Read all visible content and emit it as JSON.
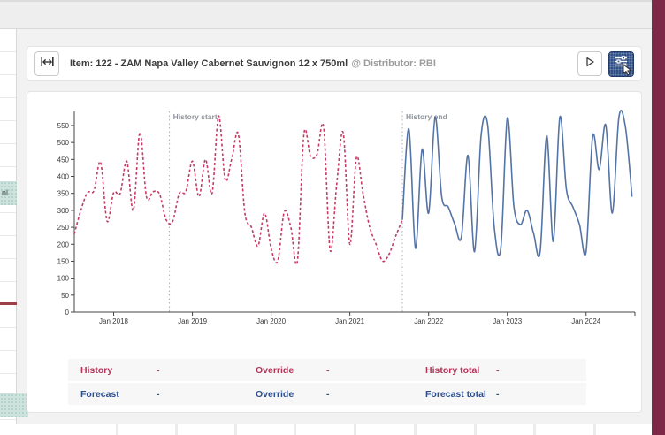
{
  "header": {
    "title": "Item: 122 - ZAM Napa Valley Cabernet Sauvignon 12 x 750ml",
    "suffix": "@ Distributor: RBI",
    "icons": {
      "left": "expand-horizontal-icon",
      "run": "play-icon",
      "settings": "sliders-icon"
    }
  },
  "background": {
    "left_row_label": "nl"
  },
  "chart_data": {
    "type": "line",
    "title": "",
    "xlabel": "",
    "ylabel": "",
    "grid": false,
    "legend": "none",
    "ylim": [
      0,
      585
    ],
    "y_ticks": [
      0,
      50,
      100,
      150,
      200,
      250,
      300,
      350,
      400,
      450,
      500,
      550
    ],
    "x_tick_labels": [
      "Jan 2018",
      "Jan 2019",
      "Jan 2020",
      "Jan 2021",
      "Jan 2022",
      "Jan 2023",
      "Jan 2024"
    ],
    "x_tick_month_index": [
      6,
      18,
      30,
      42,
      54,
      66,
      78
    ],
    "markers": [
      {
        "label": "History start",
        "month_index": 14.5
      },
      {
        "label": "History end",
        "month_index": 50
      }
    ],
    "series": [
      {
        "name": "History",
        "color": "#c43a62",
        "style": "dashed",
        "start_month_index": 0,
        "values": [
          230,
          300,
          352,
          358,
          442,
          268,
          352,
          350,
          445,
          300,
          530,
          340,
          355,
          348,
          272,
          268,
          350,
          355,
          445,
          340,
          450,
          350,
          578,
          390,
          452,
          525,
          292,
          250,
          195,
          292,
          188,
          150,
          295,
          250,
          150,
          525,
          460,
          465,
          545,
          182,
          378,
          528,
          200,
          455,
          350,
          252,
          200,
          150,
          172,
          225,
          272
        ]
      },
      {
        "name": "Forecast",
        "color": "#5474a6",
        "style": "solid",
        "start_month_index": 50,
        "values": [
          272,
          540,
          188,
          480,
          292,
          575,
          340,
          310,
          258,
          222,
          462,
          178,
          520,
          552,
          250,
          188,
          572,
          312,
          258,
          300,
          232,
          178,
          520,
          208,
          575,
          362,
          310,
          258,
          178,
          518,
          420,
          552,
          292,
          575,
          545,
          340
        ]
      }
    ]
  },
  "summary": {
    "rows": [
      {
        "cells": [
          {
            "label": "History",
            "value": "-"
          },
          {
            "label": "Override",
            "value": "-"
          },
          {
            "label": "History total",
            "value": "-"
          }
        ]
      },
      {
        "cells": [
          {
            "label": "Forecast",
            "value": "-"
          },
          {
            "label": "Override",
            "value": "-"
          },
          {
            "label": "Forecast total",
            "value": "-"
          }
        ]
      }
    ]
  }
}
